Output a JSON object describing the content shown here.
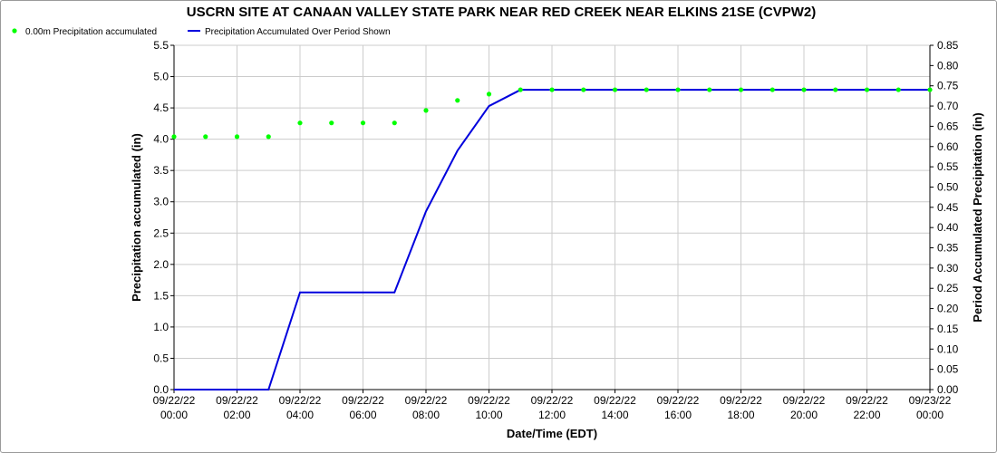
{
  "chart_data": {
    "type": "line",
    "title": "USCRN SITE AT CANAAN VALLEY STATE PARK NEAR RED CREEK NEAR ELKINS 21SE (CVPW2)",
    "xlabel": "Date/Time (EDT)",
    "ylabel": "Precipitation accumulated (in)",
    "y2label": "Period Accumulated Precipitation (in)",
    "grid": true,
    "legend_position": "top-left",
    "xlim": [
      0,
      24
    ],
    "ylim": [
      0.0,
      5.5
    ],
    "y2lim": [
      0.0,
      0.85
    ],
    "x_ticks": [
      {
        "value": 0,
        "date": "09/22/22",
        "time": "00:00"
      },
      {
        "value": 2,
        "date": "09/22/22",
        "time": "02:00"
      },
      {
        "value": 4,
        "date": "09/22/22",
        "time": "04:00"
      },
      {
        "value": 6,
        "date": "09/22/22",
        "time": "06:00"
      },
      {
        "value": 8,
        "date": "09/22/22",
        "time": "08:00"
      },
      {
        "value": 10,
        "date": "09/22/22",
        "time": "10:00"
      },
      {
        "value": 12,
        "date": "09/22/22",
        "time": "12:00"
      },
      {
        "value": 14,
        "date": "09/22/22",
        "time": "14:00"
      },
      {
        "value": 16,
        "date": "09/22/22",
        "time": "16:00"
      },
      {
        "value": 18,
        "date": "09/22/22",
        "time": "18:00"
      },
      {
        "value": 20,
        "date": "09/22/22",
        "time": "20:00"
      },
      {
        "value": 22,
        "date": "09/22/22",
        "time": "22:00"
      },
      {
        "value": 24,
        "date": "09/23/22",
        "time": "00:00"
      }
    ],
    "y_ticks": [
      "0.0",
      "0.5",
      "1.0",
      "1.5",
      "2.0",
      "2.5",
      "3.0",
      "3.5",
      "4.0",
      "4.5",
      "5.0",
      "5.5"
    ],
    "y2_ticks": [
      "0.00",
      "0.05",
      "0.10",
      "0.15",
      "0.20",
      "0.25",
      "0.30",
      "0.35",
      "0.40",
      "0.45",
      "0.50",
      "0.55",
      "0.60",
      "0.65",
      "0.70",
      "0.75",
      "0.80",
      "0.85"
    ],
    "series": [
      {
        "name": "0.00m Precipitation accumulated",
        "style": "scatter",
        "axis": "left",
        "color": "#00ff00",
        "x": [
          0,
          1,
          2,
          3,
          4,
          5,
          6,
          7,
          8,
          9,
          10,
          11,
          12,
          13,
          14,
          15,
          16,
          17,
          18,
          19,
          20,
          21,
          22,
          23,
          24
        ],
        "y": [
          4.04,
          4.04,
          4.04,
          4.04,
          4.26,
          4.26,
          4.26,
          4.26,
          4.46,
          4.62,
          4.72,
          4.79,
          4.79,
          4.79,
          4.79,
          4.79,
          4.79,
          4.79,
          4.79,
          4.79,
          4.79,
          4.79,
          4.79,
          4.79,
          4.79
        ]
      },
      {
        "name": "Precipitation Accumulated Over Period Shown",
        "style": "line",
        "axis": "right",
        "color": "#0000dd",
        "x": [
          0,
          1,
          2,
          3,
          4,
          5,
          6,
          7,
          8,
          9,
          10,
          11,
          12,
          13,
          14,
          15,
          16,
          17,
          18,
          19,
          20,
          21,
          22,
          23,
          24
        ],
        "y": [
          0.0,
          0.0,
          0.0,
          0.0,
          0.24,
          0.24,
          0.24,
          0.24,
          0.44,
          0.59,
          0.7,
          0.74,
          0.74,
          0.74,
          0.74,
          0.74,
          0.74,
          0.74,
          0.74,
          0.74,
          0.74,
          0.74,
          0.74,
          0.74,
          0.74
        ]
      }
    ]
  }
}
